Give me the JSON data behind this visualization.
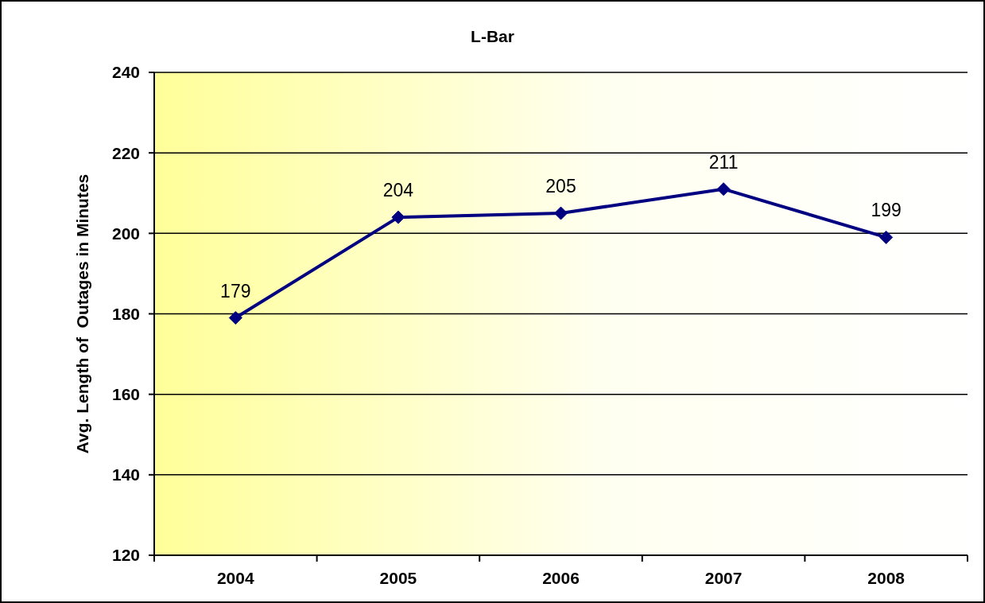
{
  "chart_data": {
    "type": "line",
    "title": "L-Bar",
    "ylabel": "Avg. Length of  Outages in Minutes",
    "categories": [
      "2004",
      "2005",
      "2006",
      "2007",
      "2008"
    ],
    "values": [
      179,
      204,
      205,
      211,
      199
    ],
    "color": "#000080",
    "ylim": [
      120,
      240
    ],
    "yticks": [
      120,
      140,
      160,
      180,
      200,
      220,
      240
    ],
    "grid": "y",
    "marker": "diamond",
    "line_style": "solid",
    "data_labels": true
  }
}
